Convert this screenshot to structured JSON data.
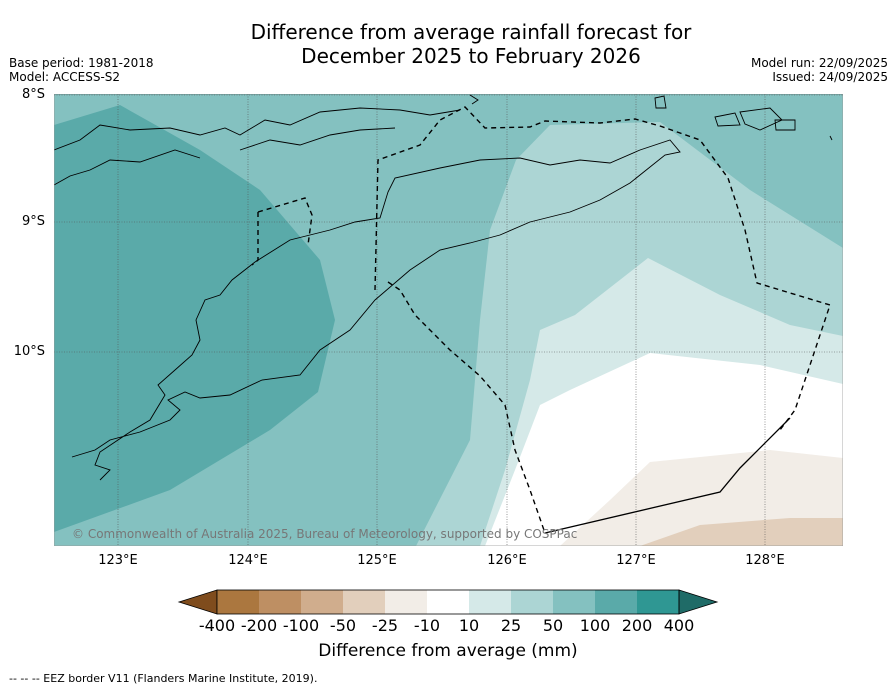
{
  "title_line1": "Difference from average rainfall forecast for",
  "title_line2": "December 2025 to February 2026",
  "base_period": "Base period: 1981-2018",
  "model": "Model: ACCESS-S2",
  "model_run": "Model run: 22/09/2025",
  "issued": "Issued: 24/09/2025",
  "lat_labels": [
    "8°S",
    "9°S",
    "10°S"
  ],
  "lon_labels": [
    "123°E",
    "124°E",
    "125°E",
    "126°E",
    "127°E",
    "128°E"
  ],
  "copyright": "© Commonwealth of Australia 2025, Bureau of Meteorology, supported by COSPPac",
  "colorbar": {
    "label": "Difference from average (mm)",
    "ticks": [
      "-400",
      "-200",
      "-100",
      "-50",
      "-25",
      "-10",
      "10",
      "25",
      "50",
      "100",
      "200",
      "400"
    ],
    "colors": [
      "#7f4c1d",
      "#ab773f",
      "#be8f63",
      "#d0ad8d",
      "#e2cfbc",
      "#f2ede7",
      "#ffffff",
      "#d5e9e8",
      "#acd5d4",
      "#84c1c0",
      "#5aaaa9",
      "#2f9793",
      "#1f6b67"
    ]
  },
  "eez_note": "--  --  -- EEZ border V11 (Flanders Marine Institute, 2019).",
  "map_extent": {
    "lon_min": 122.5,
    "lon_max": 128.6,
    "lat_min": -11.5,
    "lat_max": -8.0
  }
}
